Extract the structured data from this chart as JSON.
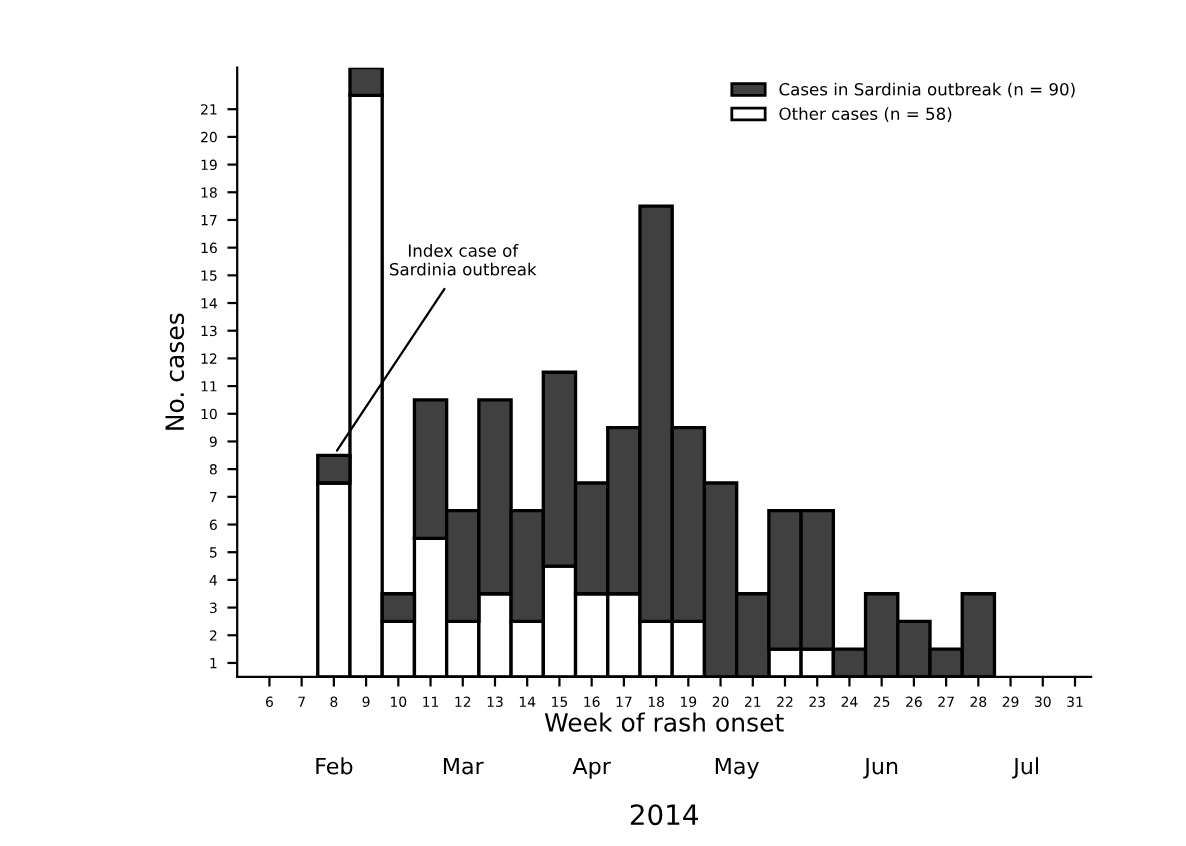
{
  "chart_data": {
    "type": "bar",
    "stacked": true,
    "xlabel": "Week of rash onset",
    "ylabel": "No. cases",
    "categories": [
      "6",
      "7",
      "8",
      "9",
      "10",
      "11",
      "12",
      "13",
      "14",
      "15",
      "16",
      "17",
      "18",
      "19",
      "20",
      "21",
      "22",
      "23",
      "24",
      "25",
      "26",
      "27",
      "28",
      "29",
      "30",
      "31"
    ],
    "series": [
      {
        "name": "Other cases (n = 58)",
        "color": "#ffffff",
        "values": [
          0,
          0,
          7,
          21,
          2,
          5,
          2,
          3,
          2,
          4,
          3,
          3,
          2,
          2,
          0,
          0,
          1,
          1,
          0,
          0,
          0,
          0,
          0,
          0,
          0,
          0
        ]
      },
      {
        "name": "Cases in Sardinia outbreak (n = 90)",
        "color": "#404040",
        "values": [
          0,
          0,
          1,
          1,
          1,
          5,
          4,
          7,
          4,
          7,
          4,
          6,
          15,
          7,
          7,
          3,
          5,
          5,
          1,
          3,
          2,
          1,
          3,
          0,
          0,
          0
        ]
      }
    ],
    "ylim": [
      0,
      22
    ],
    "yticks": [
      {
        "value": 0.5,
        "label": "1"
      },
      {
        "value": 1.5,
        "label": "2"
      },
      {
        "value": 2.5,
        "label": "3"
      },
      {
        "value": 3.5,
        "label": "4"
      },
      {
        "value": 4.5,
        "label": "5"
      },
      {
        "value": 5.5,
        "label": "6"
      },
      {
        "value": 6.5,
        "label": "7"
      },
      {
        "value": 7.5,
        "label": "8"
      },
      {
        "value": 8.5,
        "label": "9"
      },
      {
        "value": 9.5,
        "label": "10"
      },
      {
        "value": 10.5,
        "label": "11"
      },
      {
        "value": 11.5,
        "label": "12"
      },
      {
        "value": 12.5,
        "label": "13"
      },
      {
        "value": 13.5,
        "label": "14"
      },
      {
        "value": 14.5,
        "label": "15"
      },
      {
        "value": 15.5,
        "label": "16"
      },
      {
        "value": 16.5,
        "label": "17"
      },
      {
        "value": 17.5,
        "label": "18"
      },
      {
        "value": 18.5,
        "label": "19"
      },
      {
        "value": 19.5,
        "label": "20"
      },
      {
        "value": 20.5,
        "label": "21"
      }
    ],
    "legend": "top right",
    "grid": false,
    "annotations": [
      {
        "text": "Index case of\nSardinia outbreak",
        "x": "8",
        "y": 8
      },
      "Feb",
      "Mar",
      "Apr",
      "May",
      "Jun",
      "Jul",
      "2014"
    ]
  }
}
